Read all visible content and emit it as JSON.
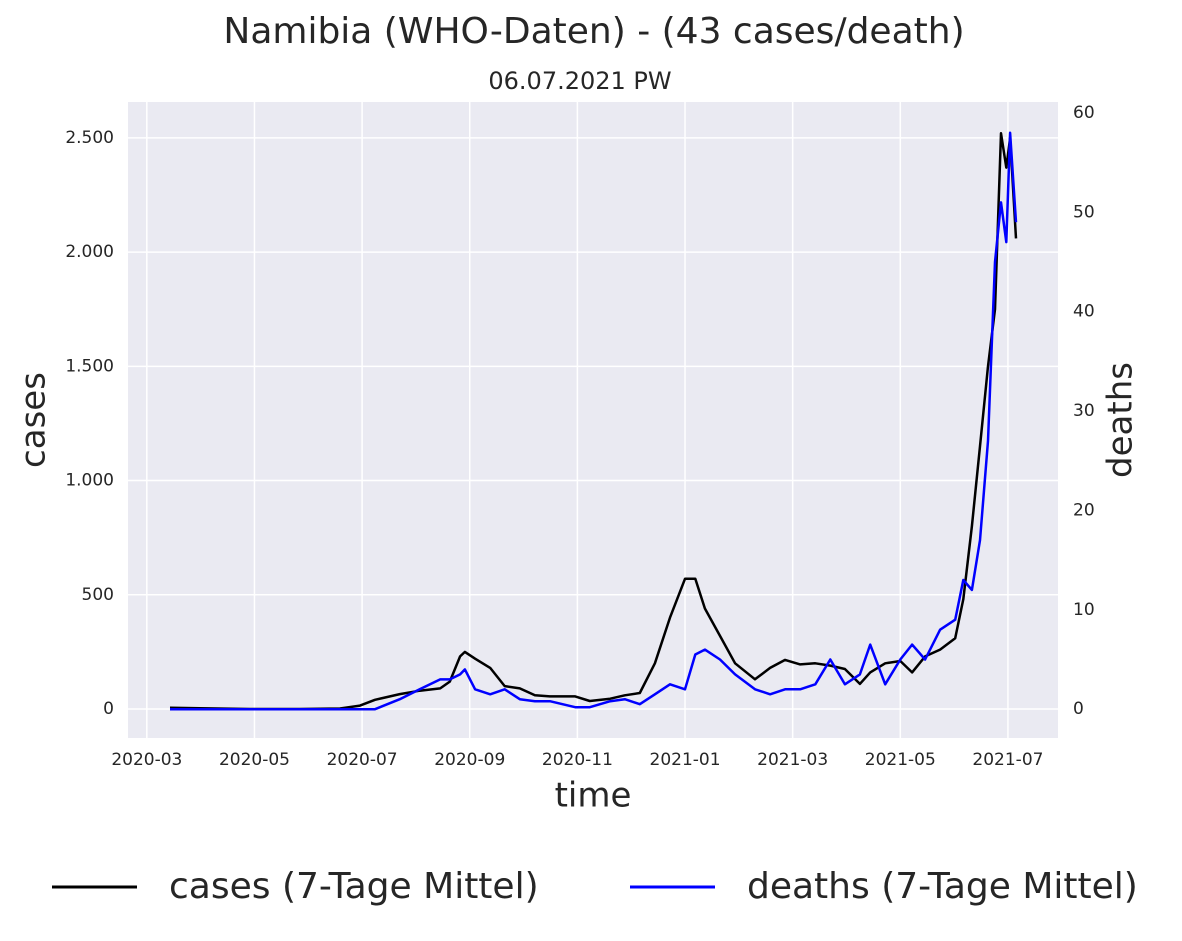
{
  "chart_data": {
    "type": "line",
    "title": "Namibia (WHO-Daten) - (43 cases/death)",
    "subtitle": "06.07.2021 PW",
    "x_label": "time",
    "y_label": "cases",
    "y2_label": "deaths",
    "x": [
      3.43,
      3.99,
      4.91,
      5.84,
      6.59,
      6.96,
      7.24,
      7.7,
      8.07,
      8.45,
      8.63,
      8.82,
      8.91,
      9.1,
      9.38,
      9.65,
      9.93,
      10.21,
      10.49,
      10.96,
      11.23,
      11.61,
      11.88,
      12.16,
      12.44,
      12.72,
      13.0,
      13.19,
      13.37,
      13.65,
      13.93,
      14.3,
      14.58,
      14.86,
      15.14,
      15.42,
      15.7,
      15.97,
      16.25,
      16.44,
      16.72,
      17.0,
      17.22,
      17.46,
      17.74,
      18.02,
      18.17,
      18.33,
      18.48,
      18.63,
      18.76,
      18.87,
      18.97,
      19.04,
      19.15
    ],
    "series": [
      {
        "name": "cases (7-Tage Mittel)",
        "color": "#000000",
        "axis": "y",
        "values": [
          5,
          3,
          0,
          0,
          2,
          15,
          40,
          65,
          80,
          90,
          120,
          230,
          250,
          220,
          180,
          100,
          90,
          60,
          55,
          55,
          35,
          45,
          60,
          70,
          200,
          400,
          570,
          570,
          440,
          320,
          200,
          130,
          180,
          215,
          195,
          200,
          190,
          175,
          110,
          160,
          200,
          210,
          160,
          230,
          260,
          310,
          480,
          800,
          1150,
          1500,
          1750,
          2520,
          2370,
          2500,
          2060
        ]
      },
      {
        "name": "deaths (7-Tage Mittel)",
        "color": "#0000ff",
        "axis": "y2",
        "values": [
          0,
          0,
          0,
          0,
          0,
          0,
          0,
          1,
          2,
          3,
          3,
          3.5,
          4,
          2,
          1.5,
          2,
          1,
          0.8,
          0.8,
          0.2,
          0.2,
          0.8,
          1,
          0.5,
          1.5,
          2.5,
          2,
          5.5,
          6,
          5,
          3.5,
          2,
          1.5,
          2,
          2,
          2.5,
          5,
          2.5,
          3.5,
          6.5,
          2.5,
          5,
          6.5,
          5,
          8,
          9,
          13,
          12,
          17,
          27,
          45,
          51,
          47,
          58,
          49
        ]
      }
    ],
    "xlim": [
      2.65,
      19.93
    ],
    "xticks": [
      {
        "value": 3,
        "label": "2020-03"
      },
      {
        "value": 5,
        "label": "2020-05"
      },
      {
        "value": 7,
        "label": "2020-07"
      },
      {
        "value": 9,
        "label": "2020-09"
      },
      {
        "value": 11,
        "label": "2020-11"
      },
      {
        "value": 13,
        "label": "2021-01"
      },
      {
        "value": 15,
        "label": "2021-03"
      },
      {
        "value": 17,
        "label": "2021-05"
      },
      {
        "value": 19,
        "label": "2021-07"
      }
    ],
    "ylim": [
      -127,
      2657
    ],
    "yticks": [
      0,
      500,
      {
        "value": 1000,
        "label": "1.000"
      },
      {
        "value": 1500,
        "label": "1.500"
      },
      {
        "value": 2000,
        "label": "2.000"
      },
      {
        "value": 2500,
        "label": "2.500"
      }
    ],
    "y2lim": [
      -2.9,
      61.1
    ],
    "y2ticks": [
      0,
      10,
      20,
      30,
      40,
      50,
      60
    ],
    "grid": true,
    "legend": "bottom"
  }
}
